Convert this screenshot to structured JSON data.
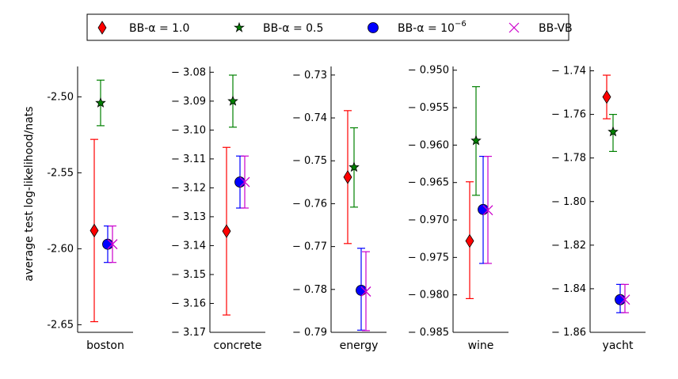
{
  "legend": {
    "entries": [
      {
        "label": "BB-α = 1.0",
        "marker": "diamond",
        "color": "#ff0000"
      },
      {
        "label": "BB-α = 0.5",
        "marker": "star",
        "color": "#008000"
      },
      {
        "label": "BB-α = 10",
        "label_sup": "−6",
        "marker": "circle",
        "color": "#0000ff"
      },
      {
        "label": "BB-VB",
        "marker": "x",
        "color": "#cc00cc"
      }
    ]
  },
  "ylabel": "average test log-likelihood/nats",
  "chart_data": [
    {
      "type": "scatter",
      "xlabel": "boston",
      "ylim": [
        -2.655,
        -2.48
      ],
      "ticks": [
        -2.5,
        -2.55,
        -2.6,
        -2.65
      ],
      "tick_labels": [
        "-2.50",
        "-2.55",
        "-2.60",
        "-2.65"
      ],
      "series": [
        {
          "marker": "diamond",
          "value": -2.588,
          "err_low": -2.648,
          "err_high": -2.528
        },
        {
          "marker": "star",
          "value": -2.504,
          "err_low": -2.519,
          "err_high": -2.489
        },
        {
          "marker": "circle",
          "value": -2.597,
          "err_low": -2.609,
          "err_high": -2.585
        },
        {
          "marker": "x",
          "value": -2.597,
          "err_low": -2.609,
          "err_high": -2.585
        }
      ]
    },
    {
      "type": "scatter",
      "xlabel": "concrete",
      "ylim": [
        -3.17,
        -3.078
      ],
      "ticks": [
        -3.08,
        -3.09,
        -3.1,
        -3.11,
        -3.12,
        -3.13,
        -3.14,
        -3.15,
        -3.16,
        -3.17
      ],
      "tick_labels": [
        "− 3.08",
        "− 3.09",
        "− 3.10",
        "− 3.11",
        "− 3.12",
        "− 3.13",
        "− 3.14",
        "− 3.15",
        "− 3.16",
        "− 3.17"
      ],
      "series": [
        {
          "marker": "diamond",
          "value": -3.135,
          "err_low": -3.164,
          "err_high": -3.106
        },
        {
          "marker": "star",
          "value": -3.09,
          "err_low": -3.099,
          "err_high": -3.081
        },
        {
          "marker": "circle",
          "value": -3.118,
          "err_low": -3.127,
          "err_high": -3.109
        },
        {
          "marker": "x",
          "value": -3.118,
          "err_low": -3.127,
          "err_high": -3.109
        }
      ]
    },
    {
      "type": "scatter",
      "xlabel": "energy",
      "ylim": [
        -0.79,
        -0.728
      ],
      "ticks": [
        -0.73,
        -0.74,
        -0.75,
        -0.76,
        -0.77,
        -0.78,
        -0.79
      ],
      "tick_labels": [
        "− 0.73",
        "− 0.74",
        "− 0.75",
        "− 0.76",
        "− 0.77",
        "− 0.78",
        "− 0.79"
      ],
      "series": [
        {
          "marker": "diamond",
          "value": -0.7538,
          "err_low": -0.7693,
          "err_high": -0.7383
        },
        {
          "marker": "star",
          "value": -0.7515,
          "err_low": -0.7608,
          "err_high": -0.7423
        },
        {
          "marker": "circle",
          "value": -0.7802,
          "err_low": -0.7895,
          "err_high": -0.7704
        },
        {
          "marker": "x",
          "value": -0.7805,
          "err_low": -0.7896,
          "err_high": -0.7712
        }
      ]
    },
    {
      "type": "scatter",
      "xlabel": "wine",
      "ylim": [
        -0.985,
        -0.9495
      ],
      "ticks": [
        -0.95,
        -0.955,
        -0.96,
        -0.965,
        -0.97,
        -0.975,
        -0.98,
        -0.985
      ],
      "tick_labels": [
        "− 0.950",
        "− 0.955",
        "− 0.960",
        "− 0.965",
        "− 0.970",
        "− 0.975",
        "− 0.980",
        "− 0.985"
      ],
      "series": [
        {
          "marker": "diamond",
          "value": -0.9728,
          "err_low": -0.9805,
          "err_high": -0.9649
        },
        {
          "marker": "star",
          "value": -0.9594,
          "err_low": -0.9667,
          "err_high": -0.9522
        },
        {
          "marker": "circle",
          "value": -0.9686,
          "err_low": -0.9758,
          "err_high": -0.9615
        },
        {
          "marker": "x",
          "value": -0.9687,
          "err_low": -0.9758,
          "err_high": -0.9615
        }
      ]
    },
    {
      "type": "scatter",
      "xlabel": "yacht",
      "ylim": [
        -1.86,
        -1.738
      ],
      "ticks": [
        -1.74,
        -1.76,
        -1.78,
        -1.8,
        -1.82,
        -1.84,
        -1.86
      ],
      "tick_labels": [
        "− 1.74",
        "− 1.76",
        "− 1.78",
        "− 1.80",
        "− 1.82",
        "− 1.84",
        "− 1.86"
      ],
      "series": [
        {
          "marker": "diamond",
          "value": -1.752,
          "err_low": -1.762,
          "err_high": -1.742
        },
        {
          "marker": "star",
          "value": -1.768,
          "err_low": -1.777,
          "err_high": -1.76
        },
        {
          "marker": "circle",
          "value": -1.845,
          "err_low": -1.851,
          "err_high": -1.838
        },
        {
          "marker": "x",
          "value": -1.845,
          "err_low": -1.851,
          "err_high": -1.838
        }
      ]
    }
  ]
}
